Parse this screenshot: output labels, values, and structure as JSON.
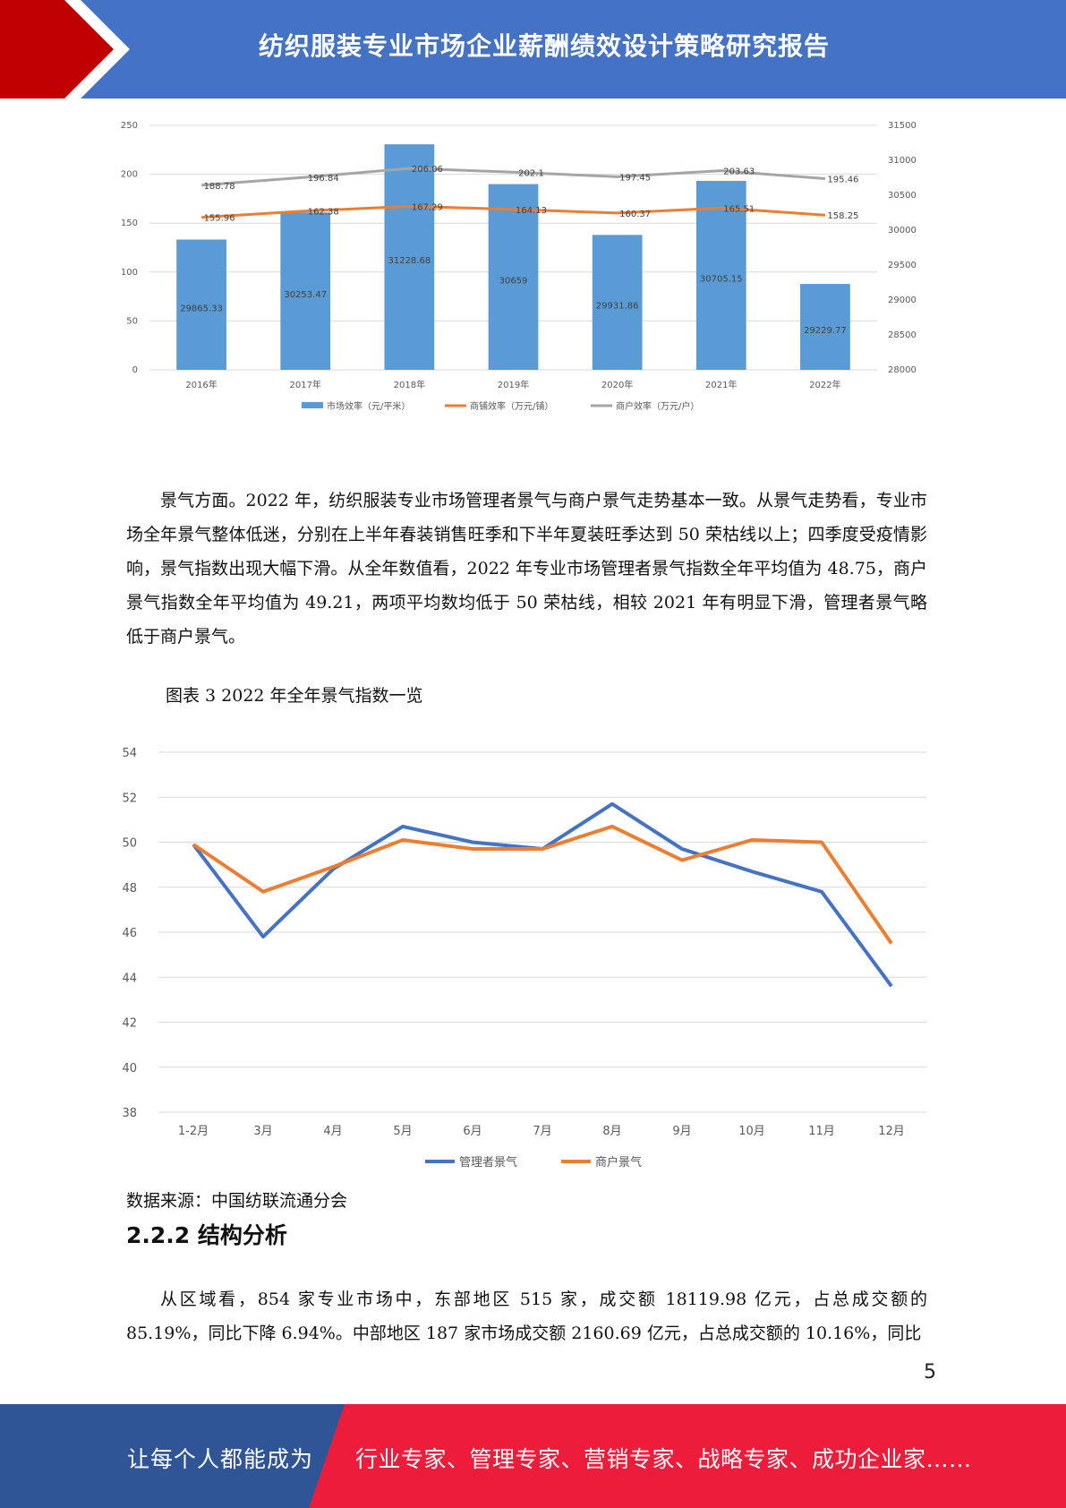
{
  "header": {
    "title": "纺织服装专业市场企业薪酬绩效设计策略研究报告"
  },
  "chart1": {
    "chart_data": {
      "type": "bar",
      "categories": [
        "2016年",
        "2017年",
        "2018年",
        "2019年",
        "2020年",
        "2021年",
        "2022年"
      ],
      "bars": {
        "name": "市场效率（元/平米）",
        "values": [
          29865.33,
          30253.47,
          31228.68,
          30659,
          29931.86,
          30705.15,
          29229.77
        ],
        "labels": [
          "29865.33",
          "30253.47",
          "31228.68",
          "30659",
          "29931.86",
          "30705.15",
          "29229.77"
        ],
        "axis": "right",
        "color": "#5b9bd5"
      },
      "lines": [
        {
          "name": "商铺效率（万元/铺）",
          "values": [
            155.96,
            162.38,
            167.29,
            164.13,
            160.37,
            165.51,
            158.25
          ],
          "labels": [
            "155.96",
            "162.38",
            "167.29",
            "164.13",
            "160.37",
            "165.51",
            "158.25"
          ],
          "axis": "left",
          "color": "#ed7d31"
        },
        {
          "name": "商户效率（万元/户）",
          "values": [
            188.78,
            196.84,
            206.06,
            202.1,
            197.45,
            203.63,
            195.46
          ],
          "labels": [
            "188.78",
            "196.84",
            "206.06",
            "202.1",
            "197.45",
            "203.63",
            "195.46"
          ],
          "axis": "left",
          "color": "#a5a5a5"
        }
      ],
      "y_left": {
        "ticks": [
          "0",
          "50",
          "100",
          "150",
          "200",
          "250"
        ],
        "range": [
          0,
          250
        ]
      },
      "y_right": {
        "ticks": [
          "28000",
          "28500",
          "29000",
          "29500",
          "30000",
          "30500",
          "31000",
          "31500"
        ],
        "range": [
          28000,
          31500
        ]
      },
      "grid": true,
      "legend": "bottom"
    }
  },
  "paragraph1": "景气方面。2022 年，纺织服装专业市场管理者景气与商户景气走势基本一致。从景气走势看，专业市场全年景气整体低迷，分别在上半年春装销售旺季和下半年夏装旺季达到 50 荣枯线以上；四季度受疫情影响，景气指数出现大幅下滑。从全年数值看，2022 年专业市场管理者景气指数全年平均值为 48.75，商户景气指数全年平均值为 49.21，两项平均数均低于 50 荣枯线，相较 2021 年有明显下滑，管理者景气略低于商户景气。",
  "chart2_caption": "图表 3 2022 年全年景气指数一览",
  "chart2": {
    "chart_data": {
      "type": "line",
      "categories": [
        "1-2月",
        "3月",
        "4月",
        "5月",
        "6月",
        "7月",
        "8月",
        "9月",
        "10月",
        "11月",
        "12月"
      ],
      "series": [
        {
          "name": "管理者景气",
          "values": [
            49.9,
            45.8,
            48.8,
            50.7,
            50.0,
            49.7,
            51.7,
            49.7,
            48.7,
            47.8,
            43.6
          ],
          "color": "#4472c4"
        },
        {
          "name": "商户景气",
          "values": [
            49.9,
            47.8,
            48.9,
            50.1,
            49.7,
            49.7,
            50.7,
            49.2,
            50.1,
            50.0,
            45.5
          ],
          "color": "#ed7d31"
        }
      ],
      "y_ticks": [
        "38",
        "40",
        "42",
        "44",
        "46",
        "48",
        "50",
        "52",
        "54"
      ],
      "ylim": [
        38,
        54
      ],
      "grid": true,
      "legend": "bottom"
    }
  },
  "source": "数据来源：中国纺联流通分会",
  "section_heading": "2.2.2 结构分析",
  "paragraph2": "从区域看，854 家专业市场中，东部地区 515 家，成交额 18119.98 亿元，占总成交额的 85.19%，同比下降 6.94%。中部地区 187 家市场成交额 2160.69 亿元，占总成交额的 10.16%，同比",
  "page_number": "5",
  "footer": {
    "left": "让每个人都能成为",
    "right": "行业专家、管理专家、营销专家、战略专家、成功企业家……"
  },
  "colors": {
    "header_blue": "#4472c4",
    "header_red": "#c00000",
    "footer_blue": "#2f5597",
    "footer_red": "#ee1c3b"
  }
}
